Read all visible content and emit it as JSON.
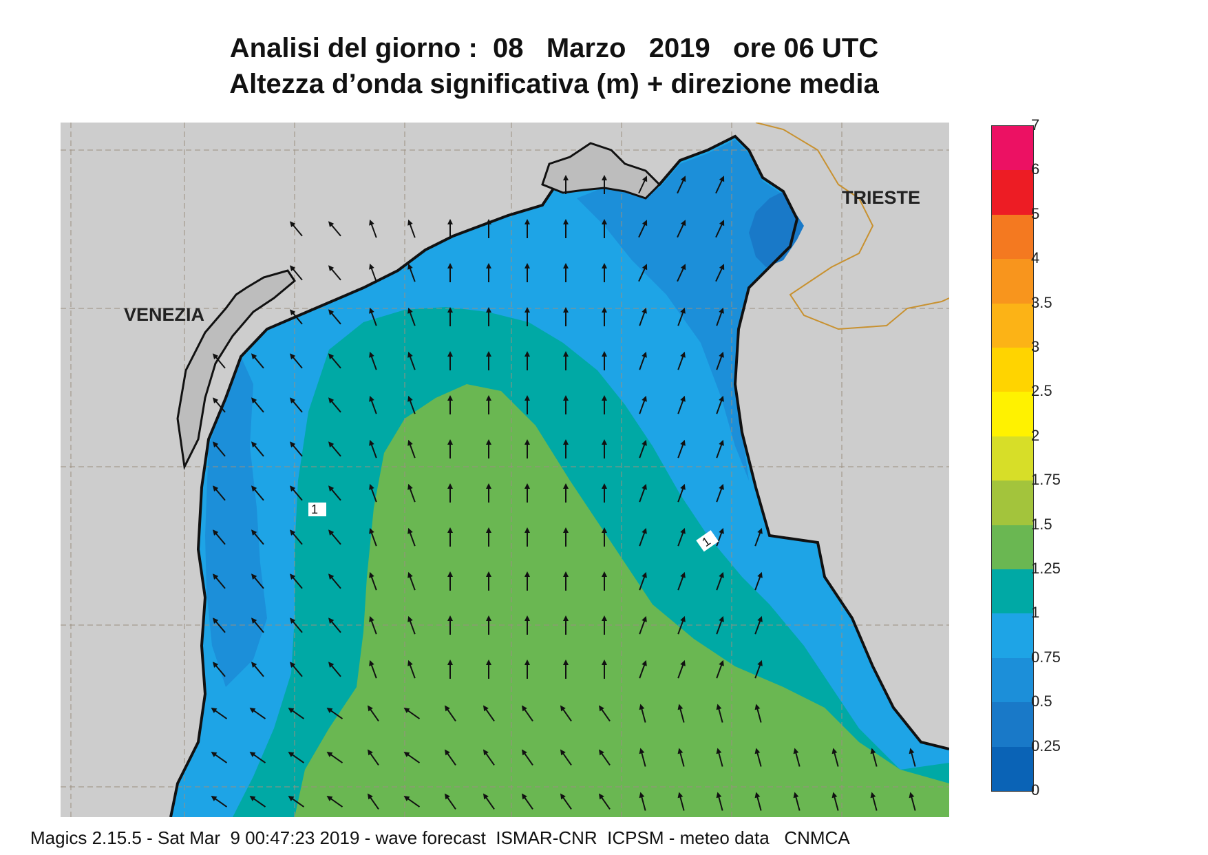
{
  "title": {
    "line1": "Analisi del giorno :  08   Marzo   2019   ore 06 UTC",
    "line2": "Altezza d’onda significativa (m) + direzione media"
  },
  "places": [
    {
      "name": "VENEZIA"
    },
    {
      "name": "TRIESTE"
    }
  ],
  "contour_labels": [
    "1",
    "1"
  ],
  "legend": {
    "ticks": [
      "0",
      "0.25",
      "0.5",
      "0.75",
      "1",
      "1.25",
      "1.5",
      "1.75",
      "2",
      "2.5",
      "3",
      "3.5",
      "4",
      "5",
      "6",
      "7"
    ],
    "colors": [
      "#0a63b6",
      "#1979c8",
      "#1c8fd9",
      "#1ea4e6",
      "#00a9a5",
      "#6ab752",
      "#a3c43c",
      "#d7de28",
      "#fff200",
      "#ffd400",
      "#fcb316",
      "#f8951d",
      "#f47920",
      "#ed1c24",
      "#ec1163"
    ]
  },
  "colors": {
    "land": "#cdcdcd",
    "arrow": "#111111",
    "border": "#c8912f"
  },
  "footer": "Magics 2.15.5 - Sat Mar  9 00:47:23 2019 - wave forecast  ISMAR-CNR  ICPSM - meteo data   CNMCA"
}
